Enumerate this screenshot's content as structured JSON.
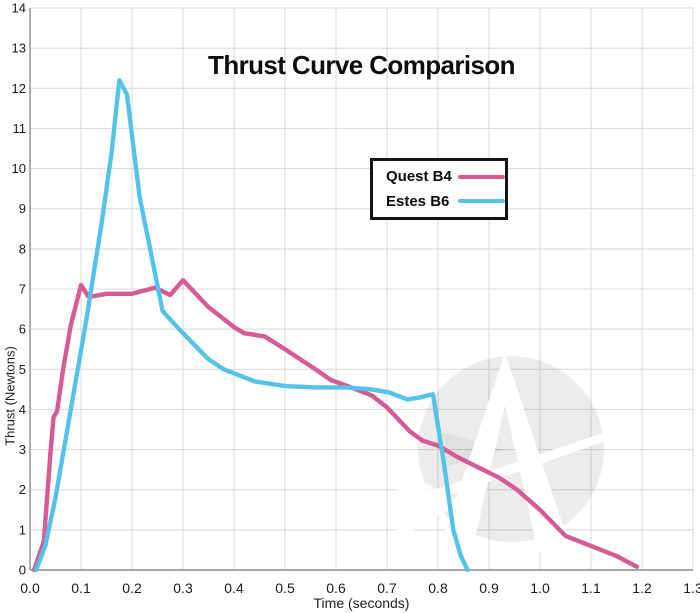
{
  "chart": {
    "title": "Thrust Curve Comparison",
    "xlabel": "Time (seconds)",
    "ylabel": "Thrust (Newtons)"
  },
  "watermark": {
    "name": "apogee-logo-watermark",
    "letter": "A",
    "circle_color": "rgba(0,0,0,0.075)",
    "accent_color": "rgba(0,0,0,0.05)",
    "foreground_color": "#ffffff"
  },
  "chart_data": {
    "type": "line",
    "title": "Thrust Curve Comparison",
    "xlabel": "Time (seconds)",
    "ylabel": "Thrust (Newtons)",
    "xlim": [
      0,
      1.3
    ],
    "ylim": [
      0,
      14
    ],
    "x_ticks": [
      "0.0",
      "0.1",
      "0.2",
      "0.3",
      "0.4",
      "0.5",
      "0.6",
      "0.7",
      "0.8",
      "0.9",
      "1.0",
      "1.1",
      "1.2",
      "1.3"
    ],
    "y_ticks": [
      0,
      1,
      2,
      3,
      4,
      5,
      6,
      7,
      8,
      9,
      10,
      11,
      12,
      13,
      14
    ],
    "grid": true,
    "legend_position": "upper-middle",
    "colors": {
      "grid": "#d8d8d8",
      "axis": "#8c8c8c",
      "text": "#1a1a1a"
    },
    "series": [
      {
        "name": "Quest B4",
        "color": "#d65a93",
        "points": [
          [
            0.008,
            0
          ],
          [
            0.02,
            0.45
          ],
          [
            0.027,
            0.7
          ],
          [
            0.04,
            2.9
          ],
          [
            0.046,
            3.8
          ],
          [
            0.053,
            3.95
          ],
          [
            0.065,
            5.0
          ],
          [
            0.08,
            6.1
          ],
          [
            0.1,
            7.1
          ],
          [
            0.115,
            6.8
          ],
          [
            0.15,
            6.88
          ],
          [
            0.2,
            6.88
          ],
          [
            0.245,
            7.03
          ],
          [
            0.275,
            6.85
          ],
          [
            0.3,
            7.22
          ],
          [
            0.35,
            6.55
          ],
          [
            0.4,
            6.05
          ],
          [
            0.42,
            5.9
          ],
          [
            0.46,
            5.82
          ],
          [
            0.5,
            5.5
          ],
          [
            0.53,
            5.25
          ],
          [
            0.56,
            5.0
          ],
          [
            0.59,
            4.73
          ],
          [
            0.63,
            4.55
          ],
          [
            0.67,
            4.35
          ],
          [
            0.7,
            4.05
          ],
          [
            0.745,
            3.45
          ],
          [
            0.77,
            3.22
          ],
          [
            0.8,
            3.1
          ],
          [
            0.84,
            2.8
          ],
          [
            0.88,
            2.55
          ],
          [
            0.92,
            2.3
          ],
          [
            0.955,
            2.0
          ],
          [
            1.0,
            1.5
          ],
          [
            1.05,
            0.85
          ],
          [
            1.1,
            0.6
          ],
          [
            1.15,
            0.35
          ],
          [
            1.19,
            0.08
          ]
        ]
      },
      {
        "name": "Estes B6",
        "color": "#54c3e8",
        "points": [
          [
            0.012,
            0
          ],
          [
            0.03,
            0.6
          ],
          [
            0.05,
            1.8
          ],
          [
            0.08,
            4.0
          ],
          [
            0.11,
            6.2
          ],
          [
            0.14,
            8.6
          ],
          [
            0.16,
            10.4
          ],
          [
            0.175,
            12.2
          ],
          [
            0.19,
            11.85
          ],
          [
            0.215,
            9.3
          ],
          [
            0.26,
            6.45
          ],
          [
            0.3,
            5.9
          ],
          [
            0.35,
            5.25
          ],
          [
            0.38,
            5.0
          ],
          [
            0.44,
            4.7
          ],
          [
            0.5,
            4.58
          ],
          [
            0.56,
            4.55
          ],
          [
            0.62,
            4.55
          ],
          [
            0.67,
            4.5
          ],
          [
            0.705,
            4.42
          ],
          [
            0.74,
            4.25
          ],
          [
            0.765,
            4.3
          ],
          [
            0.79,
            4.38
          ],
          [
            0.81,
            2.8
          ],
          [
            0.83,
            1.0
          ],
          [
            0.845,
            0.35
          ],
          [
            0.858,
            0
          ]
        ]
      }
    ]
  }
}
